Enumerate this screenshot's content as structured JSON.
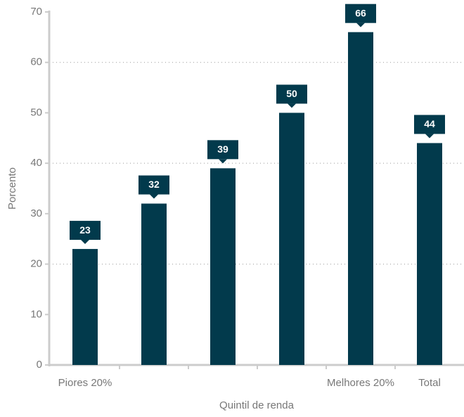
{
  "chart_data": {
    "type": "bar",
    "x_label": "Quintil de renda",
    "y_label": "Porcento",
    "categories": [
      "Piores 20%",
      null,
      null,
      null,
      "Melhores 20%",
      "Total"
    ],
    "values": [
      23,
      32,
      39,
      50,
      66,
      44
    ],
    "color": "#023a4c",
    "ylim": [
      0,
      70
    ],
    "yticks": [
      0,
      10,
      20,
      30,
      40,
      50,
      60,
      70
    ],
    "gridlines": [
      20,
      40,
      60
    ]
  }
}
